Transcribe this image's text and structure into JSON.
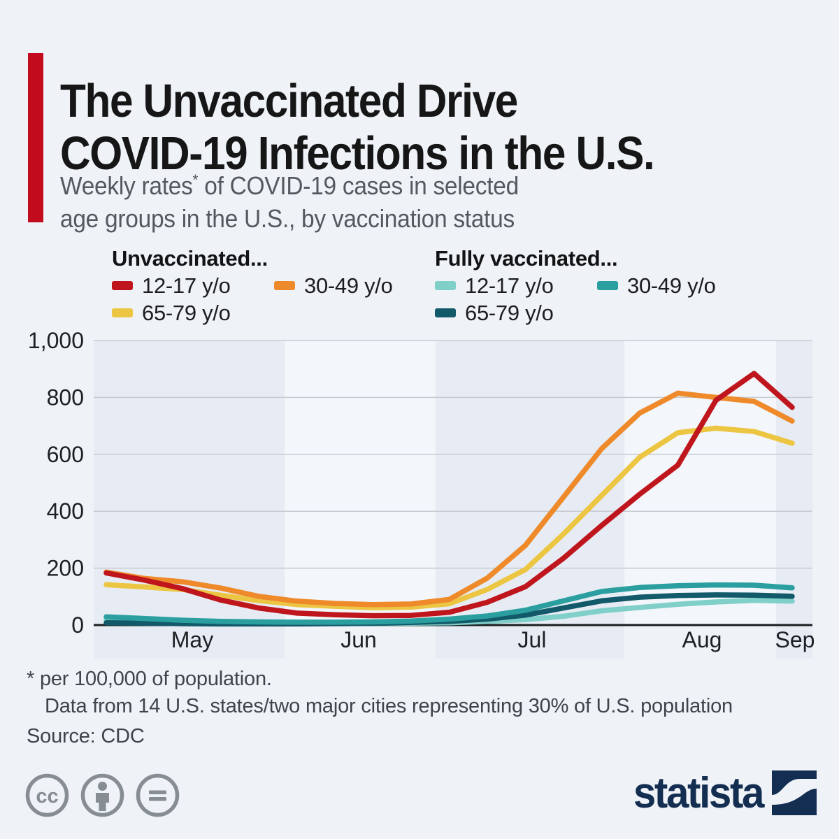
{
  "page": {
    "background": "#eff3f7",
    "accent_color": "#c30b1e"
  },
  "header": {
    "title_line1": "The Unvaccinated Drive",
    "title_line2": "COVID-19 Infections in the U.S.",
    "subtitle_before_sup": "Weekly rates",
    "subtitle_sup": "*",
    "subtitle_after_sup": " of COVID-19 cases in selected",
    "subtitle_line2": "age groups in the U.S., by vaccination status"
  },
  "legend": {
    "groups": [
      {
        "title": "Unvaccinated...",
        "items": [
          {
            "label": "12-17 y/o",
            "color": "#bf161d"
          },
          {
            "label": "30-49 y/o",
            "color": "#ef8a2b"
          },
          {
            "label": "65-79 y/o",
            "color": "#ecc643"
          }
        ]
      },
      {
        "title": "Fully vaccinated...",
        "items": [
          {
            "label": "12-17 y/o",
            "color": "#80cfc9"
          },
          {
            "label": "30-49 y/o",
            "color": "#2b9f9f"
          },
          {
            "label": "65-79 y/o",
            "color": "#12596a"
          }
        ]
      }
    ]
  },
  "chart_data": {
    "type": "line",
    "title": "Weekly rates of COVID-19 cases per 100,000 by vaccination status",
    "x_unit": "week",
    "n_points": 19,
    "x_labels": [
      "May",
      "Jun",
      "Jul",
      "Aug",
      "Sep"
    ],
    "shaded_months": [
      "May",
      "Jul",
      "Sep"
    ],
    "ylim": [
      0,
      1000
    ],
    "yticks": [
      0,
      200,
      400,
      600,
      800,
      1000
    ],
    "ytick_labels": [
      "0",
      "200",
      "400",
      "600",
      "800",
      "1,000"
    ],
    "grid": true,
    "legend_position": "top",
    "series": [
      {
        "id": "unvacc-12-17",
        "name": "Unvaccinated 12-17 y/o",
        "color": "#bf161d",
        "values": [
          183,
          158,
          128,
          88,
          60,
          42,
          36,
          33,
          34,
          45,
          80,
          135,
          235,
          350,
          460,
          562,
          790,
          884,
          765
        ]
      },
      {
        "id": "unvacc-30-49",
        "name": "Unvaccinated 30-49 y/o",
        "color": "#ef8a2b",
        "values": [
          186,
          164,
          152,
          130,
          101,
          84,
          76,
          72,
          74,
          90,
          165,
          280,
          450,
          620,
          745,
          815,
          800,
          786,
          717
        ]
      },
      {
        "id": "unvacc-65-79",
        "name": "Unvaccinated 65-79 y/o",
        "color": "#ecc643",
        "values": [
          142,
          134,
          125,
          105,
          86,
          72,
          66,
          61,
          63,
          75,
          125,
          195,
          320,
          455,
          590,
          676,
          692,
          680,
          639
        ]
      },
      {
        "id": "vacc-12-17",
        "name": "Fully vaccinated 12-17 y/o",
        "color": "#80cfc9",
        "values": [
          19,
          14,
          10,
          8,
          7,
          6,
          6,
          6,
          7,
          8,
          13,
          19,
          31,
          50,
          62,
          73,
          81,
          87,
          84
        ]
      },
      {
        "id": "vacc-30-49",
        "name": "Fully vaccinated 30-49 y/o",
        "color": "#2b9f9f",
        "values": [
          29,
          23,
          17,
          13,
          11,
          10,
          10,
          11,
          14,
          21,
          32,
          52,
          85,
          118,
          132,
          138,
          141,
          140,
          131
        ]
      },
      {
        "id": "vacc-65-79",
        "name": "Fully vaccinated 65-79 y/o",
        "color": "#12596a",
        "values": [
          8,
          7,
          5,
          4,
          4,
          4,
          5,
          6,
          9,
          13,
          21,
          35,
          60,
          85,
          98,
          104,
          106,
          105,
          101
        ]
      }
    ]
  },
  "footnotes": {
    "line1": "* per 100,000 of population.",
    "line2": "Data from 14 U.S. states/two major cities representing 30% of U.S. population",
    "source": "Source: CDC"
  },
  "footer": {
    "brand": "statista",
    "brand_color": "#132e51",
    "cc_color": "#868d93",
    "cc_icons": [
      "cc",
      "attribution",
      "no-derivatives"
    ]
  }
}
